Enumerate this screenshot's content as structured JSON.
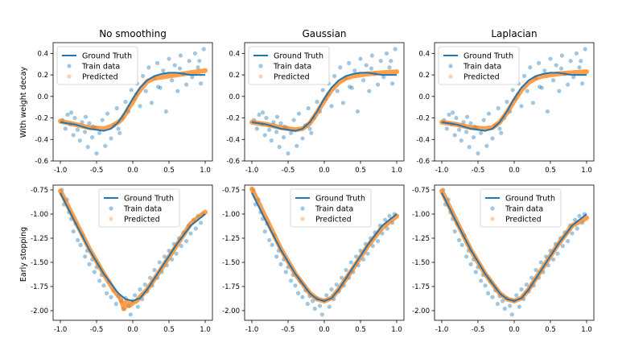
{
  "chart_data": {
    "type": "scatter",
    "column_titles": [
      "No smoothing",
      "Gaussian",
      "Laplacian"
    ],
    "row_labels": [
      "With weight decay",
      "Early stopping"
    ],
    "legend": [
      "Ground Truth",
      "Train data",
      "Predicted"
    ],
    "colors": {
      "truth": "#1f77b4",
      "train": "#1f77b4",
      "pred": "#ff7f0e"
    },
    "x_ticks": [
      "-1.0",
      "-0.5",
      "0.0",
      "0.5",
      "1.0"
    ],
    "xlim": [
      -1.1,
      1.1
    ],
    "rows": [
      {
        "ylim": [
          -0.6,
          0.5
        ],
        "y_tick_values": [
          -0.6,
          -0.4,
          -0.2,
          0.0,
          0.2,
          0.4
        ],
        "y_ticks": [
          "-0.6",
          "-0.4",
          "-0.2",
          "0.0",
          "0.2",
          "0.4"
        ],
        "ground_truth": {
          "x": [
            -1.0,
            -0.8,
            -0.6,
            -0.4,
            -0.3,
            -0.2,
            -0.1,
            0.0,
            0.1,
            0.2,
            0.3,
            0.4,
            0.5,
            0.6,
            0.8,
            1.0
          ],
          "y": [
            -0.24,
            -0.26,
            -0.3,
            -0.32,
            -0.3,
            -0.24,
            -0.14,
            -0.02,
            0.08,
            0.15,
            0.19,
            0.21,
            0.22,
            0.22,
            0.2,
            0.2
          ]
        },
        "train": {
          "x": [
            -0.97,
            -0.93,
            -0.9,
            -0.86,
            -0.82,
            -0.8,
            -0.76,
            -0.73,
            -0.7,
            -0.66,
            -0.62,
            -0.6,
            -0.56,
            -0.52,
            -0.5,
            -0.46,
            -0.42,
            -0.38,
            -0.35,
            -0.3,
            -0.26,
            -0.22,
            -0.18,
            -0.14,
            -0.1,
            -0.06,
            -0.02,
            0.02,
            0.06,
            0.1,
            0.14,
            0.18,
            0.22,
            0.26,
            0.3,
            0.34,
            0.38,
            0.42,
            0.46,
            0.5,
            0.54,
            0.58,
            0.62,
            0.66,
            0.7,
            0.74,
            0.78,
            0.82,
            0.86,
            0.9,
            0.94,
            0.98,
            -0.85,
            -0.55,
            -0.2,
            0.05,
            0.35,
            0.65,
            0.92,
            -0.65
          ],
          "y": [
            -0.22,
            -0.3,
            -0.17,
            -0.26,
            -0.36,
            -0.2,
            -0.31,
            -0.41,
            -0.24,
            -0.33,
            -0.47,
            -0.25,
            -0.38,
            -0.29,
            -0.53,
            -0.34,
            -0.22,
            -0.46,
            -0.16,
            -0.39,
            -0.27,
            -0.11,
            -0.34,
            -0.2,
            -0.05,
            -0.14,
            0.06,
            -0.02,
            0.12,
            -0.09,
            0.19,
            0.05,
            0.27,
            -0.06,
            0.17,
            0.31,
            0.08,
            0.24,
            -0.14,
            0.35,
            0.15,
            0.29,
            0.05,
            0.38,
            0.21,
            0.11,
            0.33,
            0.18,
            0.4,
            0.27,
            0.12,
            0.44,
            -0.15,
            -0.28,
            -0.3,
            0.02,
            0.09,
            0.26,
            0.33,
            -0.19
          ]
        },
        "predicted": [
          {
            "x": [
              -1.0,
              -0.8,
              -0.6,
              -0.4,
              -0.3,
              -0.2,
              -0.15,
              -0.1,
              -0.05,
              0.0,
              0.05,
              0.1,
              0.2,
              0.3,
              0.4,
              0.5,
              0.6,
              0.8,
              1.0
            ],
            "y": [
              -0.23,
              -0.26,
              -0.29,
              -0.3,
              -0.28,
              -0.24,
              -0.21,
              -0.16,
              -0.1,
              -0.05,
              0.01,
              0.06,
              0.14,
              0.17,
              0.18,
              0.19,
              0.2,
              0.22,
              0.24
            ]
          },
          {
            "x": [
              -1.0,
              -0.8,
              -0.6,
              -0.4,
              -0.3,
              -0.2,
              -0.1,
              0.0,
              0.1,
              0.2,
              0.3,
              0.4,
              0.5,
              0.6,
              0.8,
              1.0
            ],
            "y": [
              -0.24,
              -0.26,
              -0.29,
              -0.31,
              -0.3,
              -0.25,
              -0.15,
              -0.04,
              0.06,
              0.13,
              0.17,
              0.19,
              0.2,
              0.21,
              0.22,
              0.23
            ]
          },
          {
            "x": [
              -1.0,
              -0.8,
              -0.6,
              -0.4,
              -0.3,
              -0.2,
              -0.1,
              0.0,
              0.1,
              0.2,
              0.3,
              0.4,
              0.5,
              0.6,
              0.8,
              1.0
            ],
            "y": [
              -0.24,
              -0.26,
              -0.29,
              -0.3,
              -0.29,
              -0.24,
              -0.15,
              -0.04,
              0.06,
              0.13,
              0.17,
              0.19,
              0.2,
              0.21,
              0.22,
              0.23
            ]
          }
        ]
      },
      {
        "ylim": [
          -2.1,
          -0.7
        ],
        "y_tick_values": [
          -2.0,
          -1.75,
          -1.5,
          -1.25,
          -1.0,
          -0.75
        ],
        "y_ticks": [
          "-2.00",
          "-1.75",
          "-1.50",
          "-1.25",
          "-1.00",
          "-0.75"
        ],
        "ground_truth": {
          "x": [
            -1.0,
            -0.8,
            -0.6,
            -0.4,
            -0.2,
            -0.1,
            0.0,
            0.1,
            0.2,
            0.4,
            0.6,
            0.8,
            1.0
          ],
          "y": [
            -0.78,
            -1.08,
            -1.37,
            -1.62,
            -1.82,
            -1.88,
            -1.9,
            -1.87,
            -1.78,
            -1.55,
            -1.32,
            -1.12,
            -1.0
          ]
        },
        "train": {
          "x": [
            -0.98,
            -0.95,
            -0.91,
            -0.88,
            -0.85,
            -0.82,
            -0.79,
            -0.76,
            -0.72,
            -0.69,
            -0.66,
            -0.63,
            -0.6,
            -0.56,
            -0.53,
            -0.5,
            -0.46,
            -0.43,
            -0.4,
            -0.36,
            -0.33,
            -0.3,
            -0.26,
            -0.23,
            -0.2,
            -0.16,
            -0.13,
            -0.1,
            -0.06,
            -0.03,
            0.0,
            0.03,
            0.07,
            0.1,
            0.13,
            0.17,
            0.2,
            0.24,
            0.27,
            0.3,
            0.34,
            0.37,
            0.4,
            0.44,
            0.47,
            0.5,
            0.54,
            0.57,
            0.6,
            0.64,
            0.67,
            0.7,
            0.74,
            0.77,
            0.8,
            0.84,
            0.87,
            0.9,
            0.94,
            0.97
          ],
          "y": [
            -0.75,
            -0.9,
            -0.85,
            -0.98,
            -1.05,
            -1.18,
            -1.1,
            -1.27,
            -1.32,
            -1.22,
            -1.44,
            -1.38,
            -1.52,
            -1.47,
            -1.6,
            -1.55,
            -1.69,
            -1.63,
            -1.74,
            -1.82,
            -1.7,
            -1.86,
            -1.79,
            -1.93,
            -1.85,
            -1.9,
            -1.98,
            -1.87,
            -1.95,
            -2.04,
            -1.9,
            -1.84,
            -1.96,
            -1.78,
            -1.88,
            -1.73,
            -1.8,
            -1.66,
            -1.74,
            -1.58,
            -1.66,
            -1.5,
            -1.6,
            -1.44,
            -1.53,
            -1.38,
            -1.47,
            -1.31,
            -1.41,
            -1.25,
            -1.33,
            -1.19,
            -1.28,
            -1.12,
            -1.2,
            -1.06,
            -1.15,
            -1.02,
            -1.09,
            -1.0
          ]
        },
        "predicted": [
          {
            "x": [
              -1.0,
              -0.8,
              -0.6,
              -0.4,
              -0.25,
              -0.18,
              -0.14,
              -0.12,
              -0.1,
              -0.08,
              -0.05,
              0.0,
              0.05,
              0.1,
              0.2,
              0.4,
              0.6,
              0.8,
              1.0
            ],
            "y": [
              -0.76,
              -1.06,
              -1.36,
              -1.62,
              -1.8,
              -1.86,
              -1.93,
              -1.98,
              -1.94,
              -1.9,
              -1.95,
              -1.92,
              -1.9,
              -1.86,
              -1.78,
              -1.56,
              -1.33,
              -1.1,
              -0.98
            ]
          },
          {
            "x": [
              -1.0,
              -0.8,
              -0.6,
              -0.4,
              -0.2,
              -0.1,
              0.0,
              0.1,
              0.2,
              0.4,
              0.6,
              0.8,
              1.0
            ],
            "y": [
              -0.74,
              -1.05,
              -1.36,
              -1.62,
              -1.82,
              -1.88,
              -1.9,
              -1.87,
              -1.78,
              -1.56,
              -1.33,
              -1.14,
              -1.02
            ]
          },
          {
            "x": [
              -1.0,
              -0.8,
              -0.6,
              -0.4,
              -0.2,
              -0.1,
              0.0,
              0.1,
              0.2,
              0.4,
              0.6,
              0.8,
              1.0
            ],
            "y": [
              -0.76,
              -1.07,
              -1.37,
              -1.62,
              -1.82,
              -1.88,
              -1.9,
              -1.87,
              -1.78,
              -1.55,
              -1.32,
              -1.12,
              -1.04
            ]
          }
        ]
      }
    ]
  }
}
